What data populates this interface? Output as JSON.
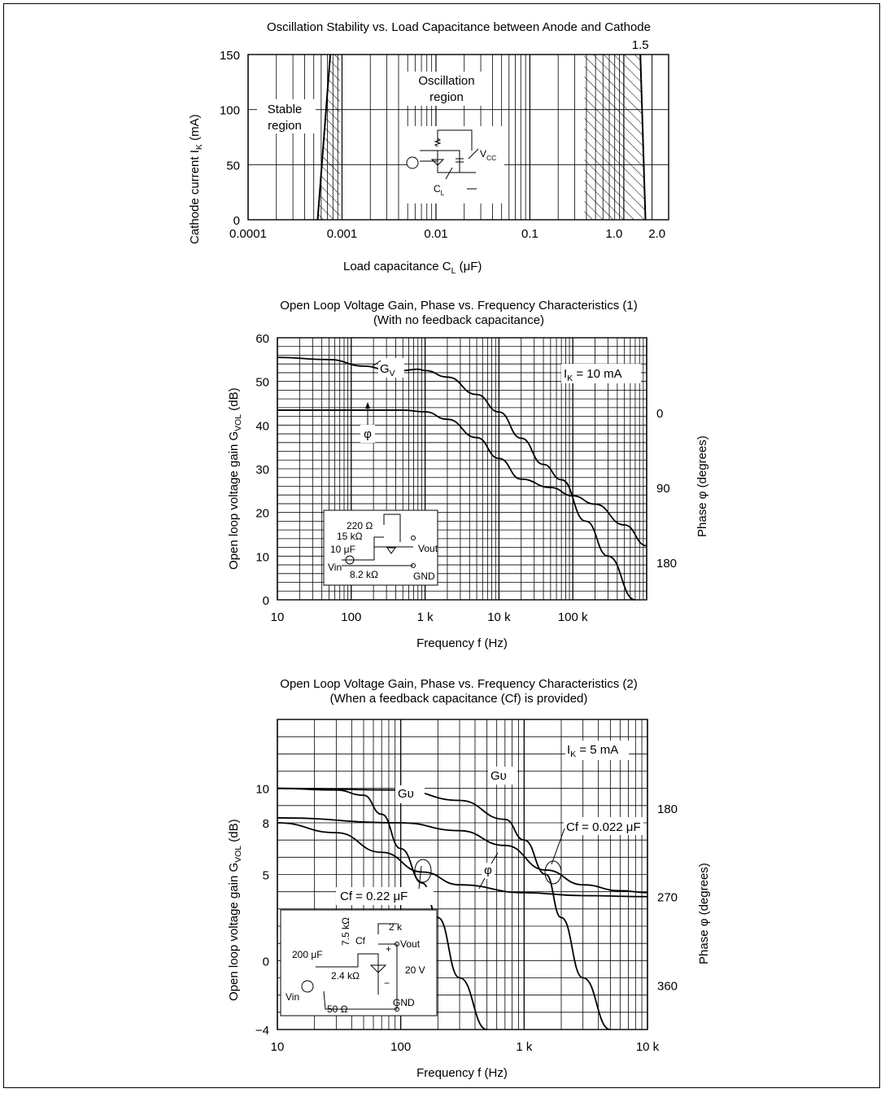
{
  "chart_data": [
    {
      "type": "line",
      "title": "Oscillation Stability vs. Load Capacitance between Anode and Cathode",
      "xlabel": "Load capacitance C",
      "xlabel_sub": "L",
      "xlabel_unit": "(μF)",
      "ylabel": "Cathode current I",
      "ylabel_sub": "K",
      "ylabel_unit": "(mA)",
      "x_scale": "log",
      "xlim": [
        0.0001,
        3
      ],
      "ylim": [
        0,
        150
      ],
      "x_ticks": [
        {
          "value": 0.0001,
          "label": "0.0001"
        },
        {
          "value": 0.001,
          "label": "0.001"
        },
        {
          "value": 0.01,
          "label": "0.01"
        },
        {
          "value": 0.1,
          "label": "0.1"
        },
        {
          "value": 1.0,
          "label": "1.0"
        },
        {
          "value": 2.0,
          "label": "2.0"
        }
      ],
      "y_ticks": [
        {
          "value": 0,
          "label": "0"
        },
        {
          "value": 50,
          "label": "50"
        },
        {
          "value": 100,
          "label": "100"
        },
        {
          "value": 150,
          "label": "150"
        }
      ],
      "boundaries": [
        {
          "name": "left",
          "x": [
            0.00055,
            0.00075
          ],
          "y": [
            0,
            150
          ]
        },
        {
          "name": "right",
          "x": [
            1.5,
            1.7
          ],
          "y": [
            150,
            0
          ]
        }
      ],
      "stable_region_label": "Stable region",
      "oscillation_region_label": "Oscillation region",
      "annotation_top": "1.5",
      "grid": true,
      "inset": {
        "vcc": "V",
        "vcc_sub": "CC",
        "cl": "C",
        "cl_sub": "L"
      }
    },
    {
      "type": "line",
      "title": "Open Loop Voltage Gain, Phase vs. Frequency Characteristics (1)",
      "subtitle": "(With no feedback capacitance)",
      "xlabel": "Frequency  f  (Hz)",
      "ylabel": "Open loop voltage gain  G",
      "ylabel_sub": "VOL",
      "ylabel_unit": "(dB)",
      "y2label": "Phase  φ  (degrees)",
      "x_scale": "log",
      "xlim": [
        10,
        1000000
      ],
      "ylim": [
        0,
        60
      ],
      "y2lim": [
        -90,
        225
      ],
      "x_ticks": [
        {
          "value": 10,
          "label": "10"
        },
        {
          "value": 100,
          "label": "100"
        },
        {
          "value": 1000,
          "label": "1 k"
        },
        {
          "value": 10000,
          "label": "10 k"
        },
        {
          "value": 100000,
          "label": "100 k"
        }
      ],
      "y_ticks": [
        {
          "value": 0,
          "label": "0"
        },
        {
          "value": 10,
          "label": "10"
        },
        {
          "value": 20,
          "label": "20"
        },
        {
          "value": 30,
          "label": "30"
        },
        {
          "value": 40,
          "label": "40"
        },
        {
          "value": 50,
          "label": "50"
        },
        {
          "value": 60,
          "label": "60"
        }
      ],
      "y2_ticks": [
        {
          "value": 0,
          "label": "0"
        },
        {
          "value": 90,
          "label": "90"
        },
        {
          "value": 180,
          "label": "180"
        }
      ],
      "series": [
        {
          "name": "G",
          "name_sub": "V",
          "x": [
            10,
            50,
            150,
            300,
            500,
            800,
            1000,
            2000,
            5000,
            10000,
            20000,
            40000,
            70000,
            150000,
            300000,
            700000
          ],
          "y": [
            55.5,
            55,
            53.5,
            52.7,
            52.5,
            52.8,
            52.5,
            51,
            47,
            43,
            37,
            31,
            27.5,
            18,
            10,
            0
          ]
        },
        {
          "name": "φ",
          "axis": "right",
          "x": [
            10,
            100,
            500,
            1000,
            2000,
            5000,
            10000,
            20000,
            50000,
            100000,
            200000,
            500000,
            1000000
          ],
          "y": [
            -3,
            -3,
            -3,
            -1,
            8,
            30,
            55,
            80,
            90,
            100,
            110,
            135,
            160
          ]
        }
      ],
      "annotation": "I",
      "annotation_sub": "K",
      "annotation_value": "= 10 mA",
      "grid": true,
      "inset": {
        "r1": "220 Ω",
        "r2": "15 kΩ",
        "c1": "10 μF",
        "vin": "Vin",
        "r3": "8.2 kΩ",
        "vout": "Vout",
        "gnd": "GND"
      }
    },
    {
      "type": "line",
      "title": "Open Loop Voltage Gain, Phase vs. Frequency Characteristics (2)",
      "subtitle": "(When a feedback capacitance (Cf) is provided)",
      "xlabel": "Frequency  f  (Hz)",
      "ylabel": "Open loop voltage gain  G",
      "ylabel_sub": "VOL",
      "ylabel_unit": "(dB)",
      "y2label": "Phase  φ  (degrees)",
      "x_scale": "log",
      "xlim": [
        10,
        10000
      ],
      "ylim": [
        -4,
        14
      ],
      "y2lim": [
        90,
        405
      ],
      "x_ticks": [
        {
          "value": 10,
          "label": "10"
        },
        {
          "value": 100,
          "label": "100"
        },
        {
          "value": 1000,
          "label": "1 k"
        },
        {
          "value": 10000,
          "label": "10 k"
        }
      ],
      "y_ticks": [
        {
          "value": -4,
          "label": "−4"
        },
        {
          "value": 0,
          "label": "0"
        },
        {
          "value": 5,
          "label": "5"
        },
        {
          "value": 8,
          "label": "8"
        },
        {
          "value": 10,
          "label": "10"
        }
      ],
      "y2_ticks": [
        {
          "value": 180,
          "label": "180"
        },
        {
          "value": 270,
          "label": "270"
        },
        {
          "value": 360,
          "label": "360"
        }
      ],
      "series": [
        {
          "name": "Gυ",
          "legend": "Cf = 0.22 μF",
          "x": [
            10,
            30,
            50,
            70,
            100,
            150,
            200,
            300,
            500
          ],
          "y": [
            10,
            9.9,
            9.6,
            8.5,
            6.5,
            4.5,
            2.5,
            -1,
            -4
          ]
        },
        {
          "name": "Gυ",
          "legend": "Cf = 0.022 μF",
          "x": [
            10,
            100,
            300,
            700,
            1000,
            1500,
            2000,
            3000,
            5000
          ],
          "y": [
            10,
            9.9,
            9.3,
            8.2,
            7,
            5,
            2.5,
            -1,
            -4
          ]
        },
        {
          "name": "φ",
          "legend": "Cf = 0.22 μF",
          "axis": "right",
          "x": [
            10,
            30,
            70,
            150,
            300,
            1000,
            3000,
            10000
          ],
          "y": [
            195,
            205,
            225,
            245,
            258,
            266,
            269,
            270
          ]
        },
        {
          "name": "φ",
          "legend": "Cf = 0.022 μF",
          "axis": "right",
          "x": [
            10,
            100,
            300,
            700,
            1500,
            3000,
            6000,
            10000
          ],
          "y": [
            190,
            195,
            203,
            218,
            243,
            258,
            264,
            266
          ]
        }
      ],
      "annotation": "I",
      "annotation_sub": "K",
      "annotation_value": "= 5 mA",
      "cf_small_label": "Cf = 0.022 μF",
      "cf_large_label": "Cf = 0.22 μF",
      "gain_label": "Gυ",
      "phase_label": "φ",
      "grid": true,
      "inset": {
        "r1": "2 k",
        "vout": "Vout",
        "cf": "Cf",
        "r2": "7.5 kΩ",
        "c1": "200 μF",
        "r3": "2.4 kΩ",
        "vz": "20 V",
        "vin": "Vin",
        "r4": "50 Ω",
        "gnd": "GND",
        "plus": "+",
        "minus": "−"
      }
    }
  ]
}
